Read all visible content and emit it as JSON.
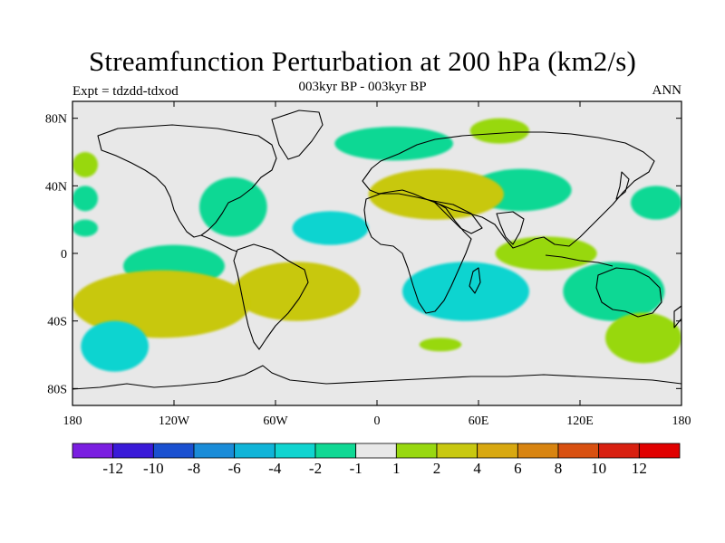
{
  "header": {
    "title": "Streamfunction Perturbation at 200 hPa (km2/s)",
    "subtitle": "003kyr BP - 003kyr BP",
    "experiment": "Expt = tdzdd-tdxod",
    "season": "ANN"
  },
  "chart_data": {
    "type": "heatmap",
    "projection": "cylindrical-equidistant",
    "title": "Streamfunction Perturbation at 200 hPa (km2/s)",
    "xlim": [
      -180,
      180
    ],
    "ylim": [
      -90,
      90
    ],
    "x_ticks": [
      {
        "value": -180,
        "label": "180"
      },
      {
        "value": -120,
        "label": "120W"
      },
      {
        "value": -60,
        "label": "60W"
      },
      {
        "value": 0,
        "label": "0"
      },
      {
        "value": 60,
        "label": "60E"
      },
      {
        "value": 120,
        "label": "120E"
      },
      {
        "value": 180,
        "label": "180"
      }
    ],
    "y_ticks": [
      {
        "value": 80,
        "label": "80N"
      },
      {
        "value": 40,
        "label": "40N"
      },
      {
        "value": 0,
        "label": "0"
      },
      {
        "value": -40,
        "label": "40S"
      },
      {
        "value": -80,
        "label": "80S"
      }
    ],
    "colorbar": {
      "labels": [
        "-12",
        "-10",
        "-8",
        "-6",
        "-4",
        "-2",
        "-1",
        "1",
        "2",
        "4",
        "6",
        "8",
        "10",
        "12"
      ],
      "colors": [
        "#7a1ee0",
        "#3a1ad8",
        "#1a50d0",
        "#1a8cd8",
        "#10b4d8",
        "#10d4d0",
        "#10d894",
        "#e8e8e8",
        "#98d810",
        "#c8c810",
        "#d8a810",
        "#d88410",
        "#d85010",
        "#d82010",
        "#e00000"
      ]
    },
    "regions": [
      {
        "id": "npac-pos",
        "level": 1,
        "lon": [
          -180,
          -165
        ],
        "lat": [
          45,
          60
        ]
      },
      {
        "id": "npac-neg",
        "level": -1,
        "lon": [
          -180,
          -165
        ],
        "lat": [
          25,
          40
        ]
      },
      {
        "id": "wpac-neg2",
        "level": -1,
        "lon": [
          -180,
          -165
        ],
        "lat": [
          10,
          20
        ]
      },
      {
        "id": "atl-neg",
        "level": -1,
        "lon": [
          -105,
          -65
        ],
        "lat": [
          10,
          45
        ]
      },
      {
        "id": "atl-neg2",
        "level": -2,
        "lon": [
          -50,
          -5
        ],
        "lat": [
          5,
          25
        ]
      },
      {
        "id": "arctic-neg",
        "level": -1,
        "lon": [
          -25,
          45
        ],
        "lat": [
          55,
          75
        ]
      },
      {
        "id": "eurasia-pos",
        "level": 2,
        "lon": [
          -5,
          75
        ],
        "lat": [
          20,
          50
        ]
      },
      {
        "id": "asia-neg",
        "level": -1,
        "lon": [
          55,
          115
        ],
        "lat": [
          25,
          50
        ]
      },
      {
        "id": "siberia-pos",
        "level": 1,
        "lon": [
          55,
          90
        ],
        "lat": [
          65,
          80
        ]
      },
      {
        "id": "sam-pos",
        "level": 2,
        "lon": [
          -85,
          -10
        ],
        "lat": [
          -40,
          -5
        ]
      },
      {
        "id": "spac-pos",
        "level": 2,
        "lon": [
          -180,
          -75
        ],
        "lat": [
          -50,
          -10
        ]
      },
      {
        "id": "spac-neg",
        "level": -2,
        "lon": [
          -175,
          -135
        ],
        "lat": [
          -70,
          -40
        ]
      },
      {
        "id": "tpac-neg",
        "level": -1,
        "lon": [
          -150,
          -90
        ],
        "lat": [
          -20,
          5
        ]
      },
      {
        "id": "indian-neg",
        "level": -2,
        "lon": [
          15,
          90
        ],
        "lat": [
          -40,
          -5
        ]
      },
      {
        "id": "indian-pos",
        "level": 1,
        "lon": [
          70,
          130
        ],
        "lat": [
          -10,
          10
        ]
      },
      {
        "id": "aus-neg",
        "level": -1,
        "lon": [
          110,
          170
        ],
        "lat": [
          -40,
          -5
        ]
      },
      {
        "id": "wpac-neg",
        "level": -1,
        "lon": [
          150,
          180
        ],
        "lat": [
          20,
          40
        ]
      },
      {
        "id": "so-pos",
        "level": 1,
        "lon": [
          135,
          180
        ],
        "lat": [
          -65,
          -35
        ]
      },
      {
        "id": "so-pos2",
        "level": 1,
        "lon": [
          25,
          50
        ],
        "lat": [
          -58,
          -50
        ]
      }
    ]
  }
}
